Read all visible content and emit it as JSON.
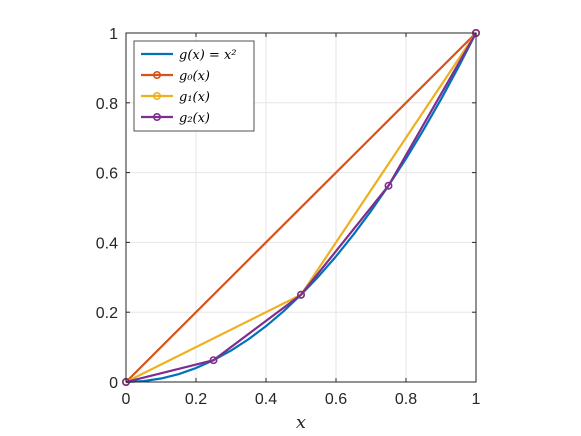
{
  "chart_data": {
    "type": "line",
    "xlabel": "x",
    "ylabel": "",
    "xlim": [
      0,
      1
    ],
    "ylim": [
      0,
      1
    ],
    "xticks": [
      0,
      0.2,
      0.4,
      0.6,
      0.8,
      1
    ],
    "yticks": [
      0,
      0.2,
      0.4,
      0.6,
      0.8,
      1
    ],
    "xtick_labels": [
      "0",
      "0.2",
      "0.4",
      "0.6",
      "0.8",
      "1"
    ],
    "ytick_labels": [
      "0",
      "0.2",
      "0.4",
      "0.6",
      "0.8",
      "1"
    ],
    "grid": true,
    "legend_position": "top-left",
    "series": [
      {
        "name": "g(x) = x²",
        "color": "#0072BD",
        "markers": false,
        "x": [
          0,
          0.05,
          0.1,
          0.15,
          0.2,
          0.25,
          0.3,
          0.35,
          0.4,
          0.45,
          0.5,
          0.55,
          0.6,
          0.65,
          0.7,
          0.75,
          0.8,
          0.85,
          0.9,
          0.95,
          1
        ],
        "y": [
          0,
          0.0025,
          0.01,
          0.0225,
          0.04,
          0.0625,
          0.09,
          0.1225,
          0.16,
          0.2025,
          0.25,
          0.3025,
          0.36,
          0.4225,
          0.49,
          0.5625,
          0.64,
          0.7225,
          0.81,
          0.9025,
          1
        ]
      },
      {
        "name": "g₀(x)",
        "color": "#D95319",
        "markers": true,
        "x": [
          0,
          1
        ],
        "y": [
          0,
          1
        ]
      },
      {
        "name": "g₁(x)",
        "color": "#EDB120",
        "markers": true,
        "x": [
          0,
          0.5,
          1
        ],
        "y": [
          0,
          0.25,
          1
        ]
      },
      {
        "name": "g₂(x)",
        "color": "#7E2F8E",
        "markers": true,
        "x": [
          0,
          0.25,
          0.5,
          0.75,
          1
        ],
        "y": [
          0,
          0.0625,
          0.25,
          0.5625,
          1
        ]
      }
    ]
  }
}
